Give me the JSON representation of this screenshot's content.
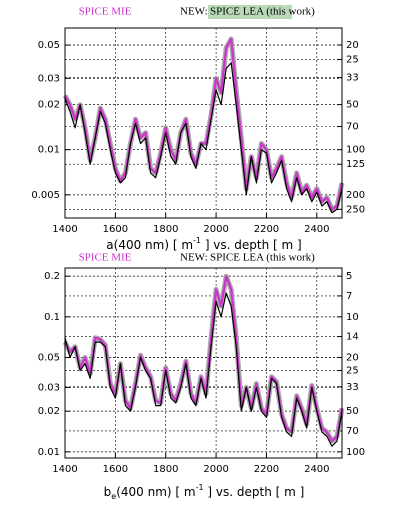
{
  "chart_data": [
    {
      "type": "line",
      "log_scale": true,
      "grid": true,
      "legend": "top",
      "legend_prefix": "NEW:",
      "xlabel": [
        "a(400 nm) [ m",
        "-1",
        " ] vs. depth [ m ]"
      ],
      "x": [
        1400,
        1420,
        1440,
        1460,
        1480,
        1500,
        1520,
        1540,
        1560,
        1580,
        1600,
        1620,
        1640,
        1660,
        1680,
        1700,
        1720,
        1740,
        1760,
        1780,
        1800,
        1820,
        1840,
        1860,
        1880,
        1900,
        1920,
        1940,
        1960,
        1980,
        2000,
        2020,
        2040,
        2060,
        2080,
        2100,
        2120,
        2140,
        2160,
        2180,
        2200,
        2220,
        2240,
        2260,
        2280,
        2300,
        2320,
        2340,
        2360,
        2380,
        2400,
        2420,
        2440,
        2460,
        2480,
        2500
      ],
      "xlim": [
        1400,
        2500
      ],
      "xticks": [
        1400,
        1600,
        1800,
        2000,
        2200,
        2400
      ],
      "ylim": [
        0.0035,
        0.065
      ],
      "yticks": [
        0.005,
        0.01,
        0.02,
        0.03,
        0.05
      ],
      "y2lim": [
        285.7,
        15.4
      ],
      "y2ticks": [
        20,
        25,
        33,
        50,
        70,
        100,
        125,
        200,
        250
      ],
      "series": [
        {
          "name": "SPICE MIE",
          "color": "#cc33cc",
          "values": [
            0.023,
            0.02,
            0.016,
            0.02,
            0.014,
            0.0085,
            0.012,
            0.019,
            0.016,
            0.011,
            0.0075,
            0.0062,
            0.007,
            0.011,
            0.016,
            0.012,
            0.013,
            0.0075,
            0.007,
            0.0095,
            0.014,
            0.01,
            0.0085,
            0.013,
            0.016,
            0.0095,
            0.008,
            0.011,
            0.011,
            0.017,
            0.03,
            0.024,
            0.048,
            0.055,
            0.025,
            0.012,
            0.0055,
            0.009,
            0.0065,
            0.011,
            0.01,
            0.0065,
            0.0075,
            0.009,
            0.006,
            0.0048,
            0.007,
            0.0052,
            0.0058,
            0.0048,
            0.0055,
            0.0045,
            0.0048,
            0.004,
            0.0042,
            0.006
          ]
        },
        {
          "name": "SPICE LEA (this work)",
          "color": "#000000",
          "values": [
            0.022,
            0.018,
            0.014,
            0.02,
            0.013,
            0.008,
            0.012,
            0.018,
            0.015,
            0.01,
            0.007,
            0.006,
            0.0065,
            0.011,
            0.015,
            0.011,
            0.012,
            0.007,
            0.0065,
            0.009,
            0.013,
            0.009,
            0.008,
            0.013,
            0.015,
            0.009,
            0.0075,
            0.011,
            0.01,
            0.016,
            0.025,
            0.02,
            0.035,
            0.038,
            0.02,
            0.01,
            0.005,
            0.009,
            0.006,
            0.01,
            0.0095,
            0.006,
            0.007,
            0.0085,
            0.0055,
            0.0045,
            0.0065,
            0.005,
            0.0055,
            0.0045,
            0.0052,
            0.0042,
            0.0045,
            0.0038,
            0.004,
            0.0055
          ]
        }
      ]
    },
    {
      "type": "line",
      "log_scale": true,
      "grid": true,
      "legend": "top",
      "legend_prefix": "NEW:",
      "xlabel": [
        "b",
        "e",
        "(400 nm) [ m",
        "-1",
        " ] vs. depth [ m ]"
      ],
      "x": [
        1400,
        1420,
        1440,
        1460,
        1480,
        1500,
        1520,
        1540,
        1560,
        1580,
        1600,
        1620,
        1640,
        1660,
        1680,
        1700,
        1720,
        1740,
        1760,
        1780,
        1800,
        1820,
        1840,
        1860,
        1880,
        1900,
        1920,
        1940,
        1960,
        1980,
        2000,
        2020,
        2040,
        2060,
        2080,
        2100,
        2120,
        2140,
        2160,
        2180,
        2200,
        2220,
        2240,
        2260,
        2280,
        2300,
        2320,
        2340,
        2360,
        2380,
        2400,
        2420,
        2440,
        2460,
        2480,
        2500
      ],
      "xlim": [
        1400,
        2500
      ],
      "xticks": [
        1400,
        1600,
        1800,
        2000,
        2200,
        2400
      ],
      "ylim": [
        0.009,
        0.23
      ],
      "yticks": [
        0.01,
        0.02,
        0.03,
        0.05,
        0.1,
        0.2
      ],
      "y2lim": [
        111.1,
        4.35
      ],
      "y2ticks": [
        5,
        7,
        10,
        14,
        20,
        25,
        33,
        50,
        70,
        100
      ],
      "series": [
        {
          "name": "SPICE MIE",
          "color": "#cc33cc",
          "values": [
            0.065,
            0.055,
            0.06,
            0.042,
            0.05,
            0.038,
            0.07,
            0.068,
            0.062,
            0.032,
            0.027,
            0.045,
            0.024,
            0.021,
            0.032,
            0.052,
            0.042,
            0.036,
            0.024,
            0.023,
            0.042,
            0.027,
            0.024,
            0.032,
            0.047,
            0.027,
            0.023,
            0.036,
            0.027,
            0.07,
            0.16,
            0.12,
            0.2,
            0.16,
            0.07,
            0.022,
            0.03,
            0.021,
            0.032,
            0.021,
            0.019,
            0.036,
            0.033,
            0.019,
            0.015,
            0.014,
            0.026,
            0.021,
            0.016,
            0.031,
            0.021,
            0.015,
            0.014,
            0.012,
            0.013,
            0.021
          ]
        },
        {
          "name": "SPICE LEA (this work)",
          "color": "#000000",
          "values": [
            0.07,
            0.05,
            0.06,
            0.04,
            0.045,
            0.035,
            0.065,
            0.065,
            0.06,
            0.03,
            0.025,
            0.045,
            0.022,
            0.02,
            0.03,
            0.05,
            0.04,
            0.035,
            0.022,
            0.022,
            0.04,
            0.025,
            0.023,
            0.03,
            0.045,
            0.025,
            0.022,
            0.035,
            0.025,
            0.06,
            0.13,
            0.1,
            0.15,
            0.12,
            0.06,
            0.02,
            0.03,
            0.02,
            0.03,
            0.02,
            0.018,
            0.035,
            0.032,
            0.018,
            0.014,
            0.013,
            0.025,
            0.02,
            0.015,
            0.03,
            0.02,
            0.014,
            0.013,
            0.011,
            0.012,
            0.02
          ]
        }
      ]
    }
  ]
}
